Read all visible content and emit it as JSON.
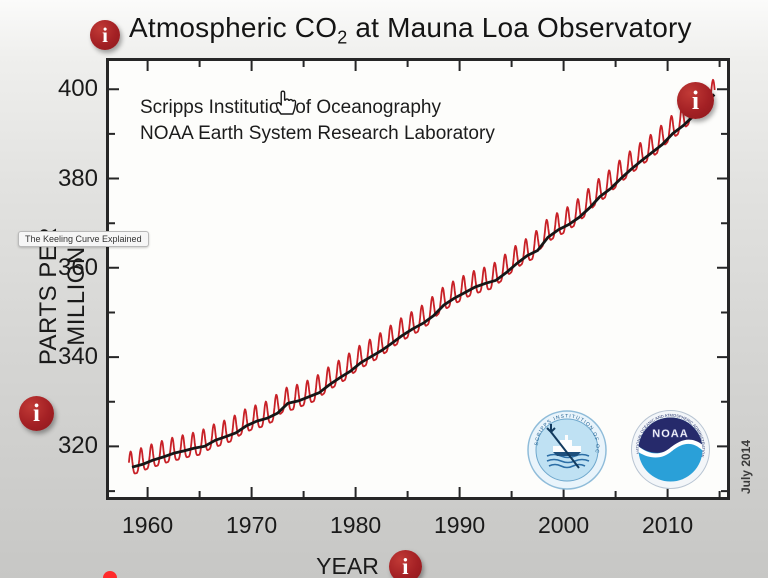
{
  "title": {
    "pre": "Atmospheric CO",
    "sub": "2",
    "post": " at Mauna Loa Observatory"
  },
  "credits": {
    "line1": "Scripps Institution of Oceanography",
    "line2": "NOAA Earth System Research Laboratory"
  },
  "axes": {
    "y_label": "PARTS PER MILLION",
    "x_label": "YEAR"
  },
  "video": {
    "tooltip": "The Keeling Curve Explained",
    "watermark_date": "July 2014"
  },
  "icons": {
    "info_glyph": "i"
  },
  "logos": {
    "scripps_ring_text": "SCRIPPS INSTITUTION OF OCEANOGRAPHY",
    "noaa_name": "NOAA",
    "noaa_ring_top": "NATIONAL OCEANIC AND ATMOSPHERIC ADMINISTRATION",
    "noaa_ring_bottom": "U.S. DEPARTMENT OF COMMERCE"
  },
  "colors": {
    "info_red": "#a32024",
    "seasonal_red": "#c82127",
    "trend_black": "#161616",
    "axis_dark": "#262626",
    "plot_bg": "#fdfdfb"
  },
  "chart_data": {
    "type": "line",
    "title": "Atmospheric CO2 at Mauna Loa Observatory",
    "xlabel": "YEAR",
    "ylabel": "PARTS PER MILLION",
    "xlim": [
      1956,
      2016
    ],
    "ylim": [
      308,
      407
    ],
    "x_ticks_major": [
      1960,
      1970,
      1980,
      1990,
      2000,
      2010
    ],
    "x_ticks_minor": [
      1965,
      1975,
      1985,
      1995,
      2005,
      2015
    ],
    "y_ticks_major": [
      320,
      340,
      360,
      380,
      400
    ],
    "y_ticks_minor": [
      310,
      330,
      350,
      370,
      390
    ],
    "grid": false,
    "legend": false,
    "series": [
      {
        "name": "annual mean trend",
        "color": "#161616",
        "x_start": 1958,
        "x_step": 1,
        "values": [
          315.34,
          315.97,
          316.91,
          317.64,
          318.45,
          318.99,
          319.62,
          320.04,
          321.37,
          322.18,
          323.05,
          324.62,
          325.68,
          326.32,
          327.46,
          329.68,
          330.19,
          331.12,
          332.03,
          333.84,
          335.41,
          336.84,
          338.76,
          340.12,
          341.48,
          343.15,
          344.87,
          346.35,
          347.61,
          349.31,
          351.69,
          353.2,
          354.45,
          355.7,
          356.54,
          357.21,
          358.96,
          360.97,
          362.74,
          363.88,
          366.84,
          368.54,
          369.71,
          371.32,
          373.45,
          375.98,
          377.7,
          379.98,
          382.09,
          384.02,
          385.83,
          387.64,
          390.1,
          391.85,
          394.06,
          396.74,
          398.81
        ]
      },
      {
        "name": "monthly (seasonal cycle)",
        "color": "#c82127",
        "derived_from": "annual mean trend",
        "seasonal": {
          "amplitude": 2.6,
          "harmonic": 0.7,
          "peak_phase": 0.37
        },
        "t_start": 1958.2,
        "t_end": 2014.55
      }
    ]
  }
}
